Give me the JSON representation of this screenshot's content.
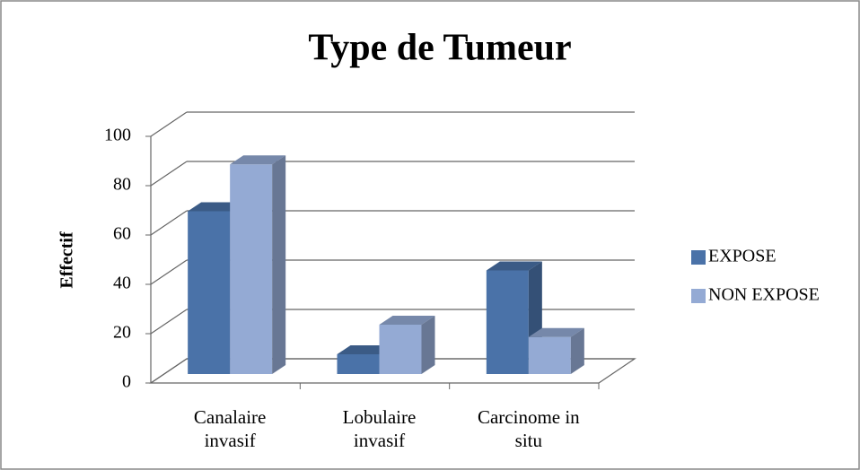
{
  "chart_data": {
    "type": "bar3d",
    "title": "Type de Tumeur",
    "y_label": "Effectif",
    "categories": [
      "Canalaire invasif",
      "Lobulaire invasif",
      "Carcinome in situ"
    ],
    "series": [
      {
        "name": "EXPOSE",
        "color": "#4a72a8",
        "values": [
          66,
          8,
          42
        ]
      },
      {
        "name": "NON EXPOSE",
        "color": "#94aad4",
        "values": [
          85,
          20,
          15
        ]
      }
    ],
    "ylim": [
      0,
      100
    ],
    "yticks": [
      0,
      20,
      40,
      60,
      80,
      100
    ],
    "grid": true,
    "legend": "right"
  }
}
